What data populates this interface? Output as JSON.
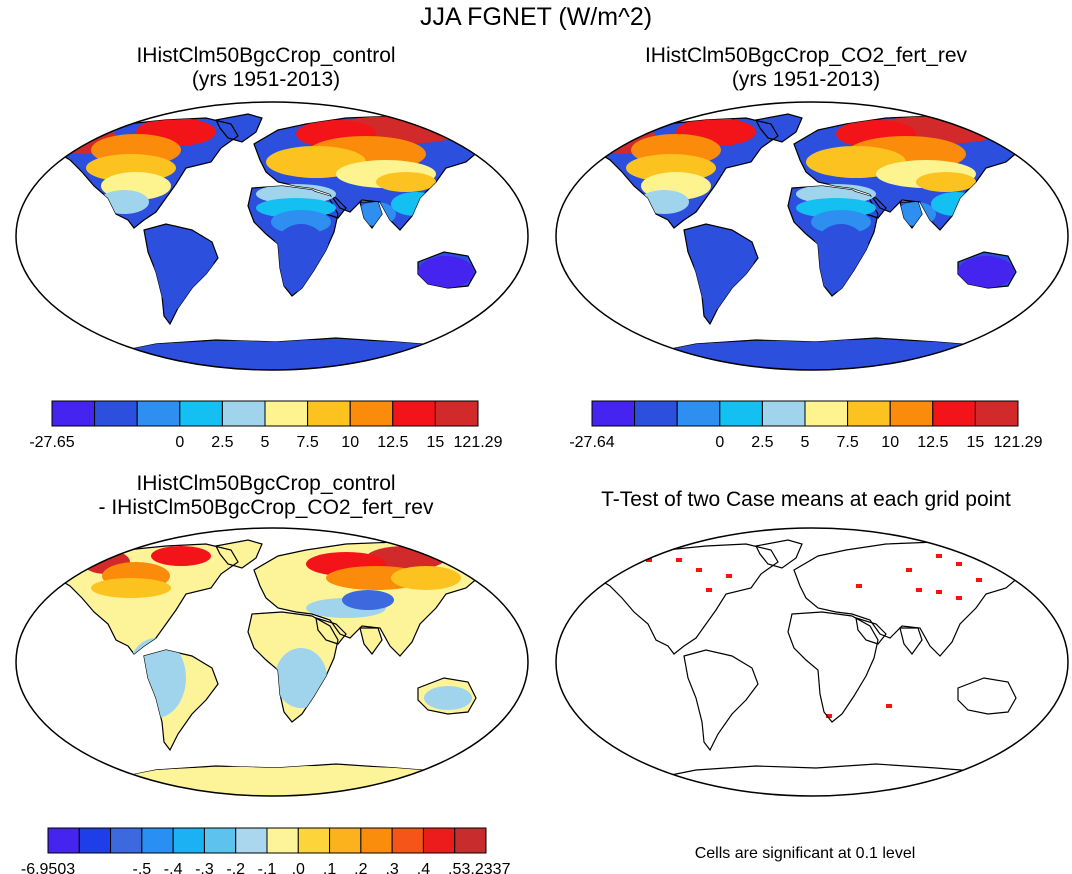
{
  "title": "JJA FGNET (W/m^2)",
  "panels": [
    {
      "title1": "IHistClm50BgcCrop_control",
      "title2": "(yrs 1951-2013)",
      "colorbar": "cb1"
    },
    {
      "title1": "IHistClm50BgcCrop_CO2_fert_rev",
      "title2": "(yrs 1951-2013)",
      "colorbar": "cb2"
    },
    {
      "title1": "IHistClm50BgcCrop_control",
      "title2": "- IHistClm50BgcCrop_CO2_fert_rev",
      "colorbar": "cb3"
    },
    {
      "title1": "T-Test of two Case means at each grid point",
      "title2": ""
    }
  ],
  "colorbars": {
    "cb1": {
      "colors": [
        "#4424ee",
        "#2c50dd",
        "#2e8ff0",
        "#14bff2",
        "#a0d4ec",
        "#fdf48f",
        "#fcc21f",
        "#fb8b0a",
        "#f3141a",
        "#d22a2a"
      ],
      "labels": [
        "-27.65",
        "0",
        "2.5",
        "5",
        "7.5",
        "10",
        "12.5",
        "15",
        "121.29"
      ]
    },
    "cb2": {
      "colors": [
        "#4424ee",
        "#2c50dd",
        "#2e8ff0",
        "#14bff2",
        "#a0d4ec",
        "#fdf48f",
        "#fcc21f",
        "#fb8b0a",
        "#f3141a",
        "#d22a2a"
      ],
      "labels": [
        "-27.64",
        "0",
        "2.5",
        "5",
        "7.5",
        "10",
        "12.5",
        "15",
        "121.29"
      ]
    },
    "cb3": {
      "colors": [
        "#4424ee",
        "#1d3ee8",
        "#3c69dd",
        "#2a8ff2",
        "#1bb2f4",
        "#5dc3ee",
        "#aad7ee",
        "#fdf49a",
        "#fdd43a",
        "#fcb21c",
        "#fb8d0c",
        "#f55518",
        "#ed1c1c",
        "#c92c2c"
      ],
      "labels": [
        "-6.9503",
        "-.5",
        "-.4",
        "-.3",
        "-.2",
        "-.1",
        ".0",
        ".1",
        ".2",
        ".3",
        ".4",
        ".5",
        "3.2337"
      ]
    }
  },
  "note": "Cells are significant at 0.1 level"
}
